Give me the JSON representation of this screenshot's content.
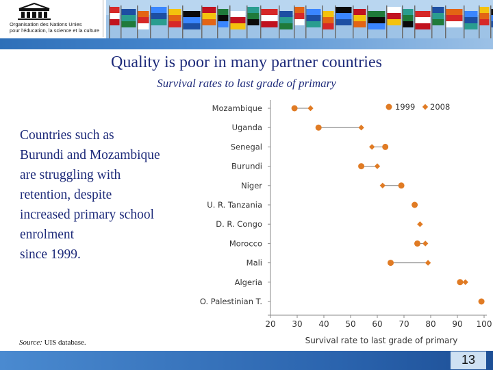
{
  "header": {
    "logo_text_lines": [
      "Organisation des Nations Unies",
      "pour l'éducation, la science et la culture"
    ]
  },
  "title": "Quality is poor in many partner countries",
  "subtitle": "Survival rates to last grade of primary",
  "body_lines": [
    "Countries such as",
    "Burundi and Mozambique",
    "are struggling with",
    "retention, despite",
    "increased primary school",
    "enrolment",
    "since 1999."
  ],
  "source": {
    "label": "Source:",
    "text": " UIS database."
  },
  "page_number": "13",
  "colors": {
    "marker": "#e07b24",
    "title": "#1e2b7a",
    "band": "#3b7cc4"
  },
  "chart_data": {
    "type": "dumbbell",
    "xlabel": "Survival rate to last grade of primary",
    "xlim": [
      20,
      100
    ],
    "xticks": [
      20,
      30,
      40,
      50,
      60,
      70,
      80,
      90,
      100
    ],
    "grid": false,
    "legend_position": "top-right",
    "series": [
      {
        "name": "1999",
        "marker": "circle"
      },
      {
        "name": "2008",
        "marker": "diamond"
      }
    ],
    "categories": [
      "Mozambique",
      "Uganda",
      "Senegal",
      "Burundi",
      "Niger",
      "U. R. Tanzania",
      "D. R. Congo",
      "Morocco",
      "Mali",
      "Algeria",
      "O. Palestinian T."
    ],
    "values_1999": [
      29,
      38,
      63,
      54,
      69,
      74,
      null,
      75,
      65,
      91,
      99
    ],
    "values_2008": [
      35,
      54,
      58,
      60,
      62,
      74,
      76,
      78,
      79,
      93,
      99
    ]
  }
}
